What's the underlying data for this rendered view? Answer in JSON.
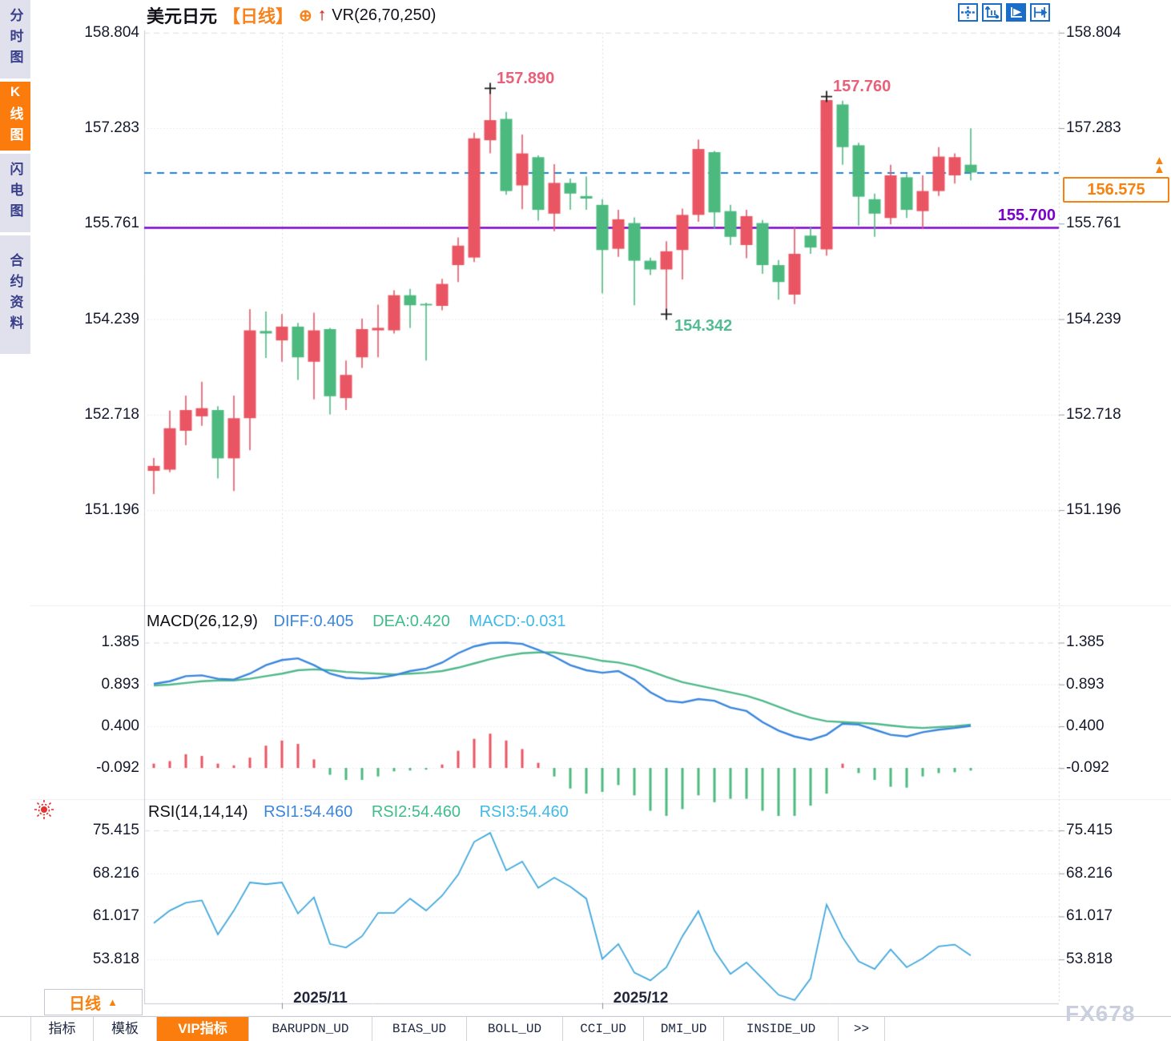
{
  "app": {
    "sidebar": {
      "tabs": [
        {
          "label": "分时图",
          "active": false
        },
        {
          "label": "K线图",
          "active": true
        },
        {
          "label": "闪电图",
          "active": false
        },
        {
          "label": "合约资料",
          "active": false
        }
      ]
    },
    "header": {
      "symbol": "美元日元",
      "period_tag": "【日线】",
      "indicator": "VR(26,70,250)"
    },
    "toolbar_icons": [
      {
        "name": "crosshair-icon",
        "active": false
      },
      {
        "name": "axis-scale-icon",
        "active": false
      },
      {
        "name": "auto-scale-icon",
        "active": true
      },
      {
        "name": "shift-right-icon",
        "active": false
      }
    ],
    "price_box": {
      "value": "156.575"
    },
    "level_label": {
      "value": "155.700"
    },
    "macd_header": {
      "name": "MACD(26,12,9)",
      "diff_label": "DIFF:0.405",
      "dea_label": "DEA:0.420",
      "macd_label": "MACD:-0.031"
    },
    "rsi_header": {
      "name": "RSI(14,14,14)",
      "rsi1_label": "RSI1:54.460",
      "rsi2_label": "RSI2:54.460",
      "rsi3_label": "RSI3:54.460"
    },
    "period_button": {
      "label": "日线",
      "arrow": "▲"
    },
    "bottom_tabs": [
      {
        "label": "指标",
        "active": false,
        "mono": false
      },
      {
        "label": "模板",
        "active": false,
        "mono": false
      },
      {
        "label": "VIP指标",
        "active": true,
        "mono": false
      },
      {
        "label": "BARUPDN_UD",
        "active": false,
        "mono": true
      },
      {
        "label": "BIAS_UD",
        "active": false,
        "mono": true
      },
      {
        "label": "BOLL_UD",
        "active": false,
        "mono": true
      },
      {
        "label": "CCI_UD",
        "active": false,
        "mono": true
      },
      {
        "label": "DMI_UD",
        "active": false,
        "mono": true
      },
      {
        "label": "INSIDE_UD",
        "active": false,
        "mono": true
      },
      {
        "label": ">>",
        "active": false,
        "mono": true
      }
    ],
    "watermark": "FX678"
  },
  "chart_data": {
    "type": "candlestick",
    "symbol": "美元日元 (USD/JPY)",
    "timeframe": "日线 (daily)",
    "price_axis_ticks": [
      158.804,
      157.283,
      155.761,
      154.239,
      152.718,
      151.196
    ],
    "macd_axis_ticks": [
      1.385,
      0.893,
      0.4,
      -0.092
    ],
    "rsi_axis_ticks": [
      75.415,
      68.216,
      61.017,
      53.818
    ],
    "x_axis_labels": [
      "2025/11",
      "2025/12"
    ],
    "levels": {
      "current_price": 156.575,
      "support_line": 155.7
    },
    "annotations": [
      {
        "text": "157.890",
        "type": "high",
        "candle": 22
      },
      {
        "text": "157.760",
        "type": "high",
        "candle": 43
      },
      {
        "text": "154.342",
        "type": "low",
        "candle": 33
      }
    ],
    "candles": {
      "columns": [
        "open",
        "high",
        "low",
        "close"
      ],
      "rows": [
        [
          151.82,
          152.03,
          151.45,
          151.9
        ],
        [
          151.84,
          152.78,
          151.8,
          152.5
        ],
        [
          152.46,
          153.02,
          152.23,
          152.79
        ],
        [
          152.69,
          153.24,
          152.54,
          152.82
        ],
        [
          152.79,
          152.85,
          151.7,
          152.02
        ],
        [
          152.02,
          153.02,
          151.5,
          152.66
        ],
        [
          152.66,
          154.4,
          152.15,
          154.06
        ],
        [
          154.05,
          154.36,
          153.62,
          154.01
        ],
        [
          153.9,
          154.32,
          153.56,
          154.12
        ],
        [
          154.12,
          154.18,
          153.27,
          153.63
        ],
        [
          153.56,
          154.34,
          152.96,
          154.06
        ],
        [
          154.08,
          154.1,
          152.72,
          153.01
        ],
        [
          152.98,
          153.58,
          152.79,
          153.35
        ],
        [
          153.63,
          154.25,
          153.46,
          154.08
        ],
        [
          154.06,
          154.47,
          153.63,
          154.1
        ],
        [
          154.06,
          154.7,
          154.01,
          154.62
        ],
        [
          154.62,
          154.72,
          154.1,
          154.46
        ],
        [
          154.47,
          154.5,
          153.58,
          154.45
        ],
        [
          154.45,
          154.88,
          154.38,
          154.8
        ],
        [
          155.1,
          155.54,
          154.83,
          155.41
        ],
        [
          155.22,
          157.21,
          155.15,
          157.12
        ],
        [
          157.09,
          157.89,
          156.88,
          157.41
        ],
        [
          157.43,
          157.54,
          156.22,
          156.28
        ],
        [
          156.37,
          157.18,
          155.99,
          156.88
        ],
        [
          156.82,
          156.85,
          155.81,
          155.98
        ],
        [
          155.92,
          156.71,
          155.64,
          156.41
        ],
        [
          156.41,
          156.48,
          155.98,
          156.24
        ],
        [
          156.2,
          156.51,
          155.98,
          156.16
        ],
        [
          156.06,
          156.15,
          154.65,
          155.34
        ],
        [
          155.36,
          155.98,
          155.23,
          155.83
        ],
        [
          155.77,
          155.86,
          154.46,
          155.17
        ],
        [
          155.17,
          155.22,
          154.94,
          155.03
        ],
        [
          155.03,
          155.48,
          154.342,
          155.32
        ],
        [
          155.34,
          156.0,
          154.87,
          155.9
        ],
        [
          155.9,
          157.1,
          155.79,
          156.95
        ],
        [
          156.9,
          156.92,
          155.68,
          155.94
        ],
        [
          155.96,
          156.06,
          155.42,
          155.55
        ],
        [
          155.42,
          155.98,
          155.21,
          155.88
        ],
        [
          155.77,
          155.82,
          154.96,
          155.1
        ],
        [
          155.1,
          155.18,
          154.55,
          154.83
        ],
        [
          154.63,
          155.7,
          154.48,
          155.28
        ],
        [
          155.57,
          155.7,
          155.28,
          155.38
        ],
        [
          155.35,
          157.76,
          155.25,
          157.73
        ],
        [
          157.66,
          157.72,
          156.7,
          156.98
        ],
        [
          157.01,
          157.05,
          155.73,
          156.19
        ],
        [
          156.15,
          156.24,
          155.55,
          155.92
        ],
        [
          155.85,
          156.7,
          155.75,
          156.53
        ],
        [
          156.5,
          156.55,
          155.85,
          155.98
        ],
        [
          155.96,
          156.53,
          155.68,
          156.28
        ],
        [
          156.28,
          156.98,
          156.2,
          156.83
        ],
        [
          156.53,
          156.88,
          156.4,
          156.82
        ],
        [
          156.7,
          157.28,
          156.45,
          156.575
        ]
      ]
    },
    "macd": {
      "diff": [
        0.9,
        0.93,
        0.99,
        1.0,
        0.96,
        0.95,
        1.02,
        1.12,
        1.18,
        1.2,
        1.12,
        1.02,
        0.97,
        0.96,
        0.97,
        1.0,
        1.05,
        1.08,
        1.15,
        1.26,
        1.34,
        1.38,
        1.385,
        1.37,
        1.3,
        1.22,
        1.12,
        1.06,
        1.03,
        1.05,
        0.95,
        0.8,
        0.7,
        0.68,
        0.72,
        0.7,
        0.62,
        0.58,
        0.45,
        0.35,
        0.28,
        0.24,
        0.3,
        0.43,
        0.42,
        0.36,
        0.3,
        0.28,
        0.33,
        0.36,
        0.38,
        0.405
      ],
      "dea": [
        0.88,
        0.89,
        0.91,
        0.93,
        0.94,
        0.94,
        0.96,
        0.99,
        1.02,
        1.06,
        1.07,
        1.06,
        1.04,
        1.03,
        1.02,
        1.01,
        1.02,
        1.03,
        1.05,
        1.09,
        1.14,
        1.19,
        1.23,
        1.26,
        1.27,
        1.27,
        1.24,
        1.21,
        1.17,
        1.15,
        1.11,
        1.05,
        0.98,
        0.92,
        0.88,
        0.84,
        0.8,
        0.76,
        0.7,
        0.63,
        0.56,
        0.5,
        0.46,
        0.45,
        0.44,
        0.43,
        0.41,
        0.39,
        0.38,
        0.39,
        0.4,
        0.42
      ],
      "hist": [
        0.05,
        0.08,
        0.16,
        0.14,
        0.05,
        0.03,
        0.12,
        0.26,
        0.32,
        0.28,
        0.1,
        -0.08,
        -0.14,
        -0.14,
        -0.1,
        -0.04,
        -0.03,
        -0.02,
        0.04,
        0.2,
        0.34,
        0.4,
        0.32,
        0.22,
        0.06,
        -0.1,
        -0.24,
        -0.3,
        -0.28,
        -0.2,
        -0.32,
        -0.5,
        -0.56,
        -0.48,
        -0.32,
        -0.4,
        -0.36,
        -0.36,
        -0.5,
        -0.56,
        -0.56,
        -0.44,
        -0.3,
        0.05,
        -0.06,
        -0.14,
        -0.22,
        -0.23,
        -0.1,
        -0.06,
        -0.05,
        -0.031
      ]
    },
    "rsi": [
      59.9,
      62.0,
      63.3,
      63.7,
      58.0,
      62.0,
      66.7,
      66.4,
      66.7,
      61.5,
      64.2,
      56.4,
      55.8,
      57.7,
      61.6,
      61.6,
      64.0,
      62.0,
      64.5,
      68.0,
      73.5,
      75.0,
      68.7,
      70.2,
      65.8,
      67.5,
      66.0,
      64.0,
      53.9,
      56.4,
      51.6,
      50.3,
      52.5,
      57.7,
      61.9,
      55.3,
      51.4,
      53.3,
      50.6,
      47.9,
      47.0,
      50.6,
      63.0,
      57.5,
      53.5,
      52.2,
      55.5,
      52.5,
      54.0,
      56.0,
      56.3,
      54.46
    ],
    "colors": {
      "up_candle": "#e95562",
      "down_candle": "#4cb97f",
      "diff_line": "#3a86dd",
      "dea_line": "#4fb98a",
      "rsi_line": "#41a8dc",
      "current_price_dashed": "#1f7fd6",
      "support_line": "#7a00cc",
      "accent_orange": "#f8820f",
      "annotation_high": "#e8607a",
      "annotation_low": "#53bc92"
    }
  }
}
